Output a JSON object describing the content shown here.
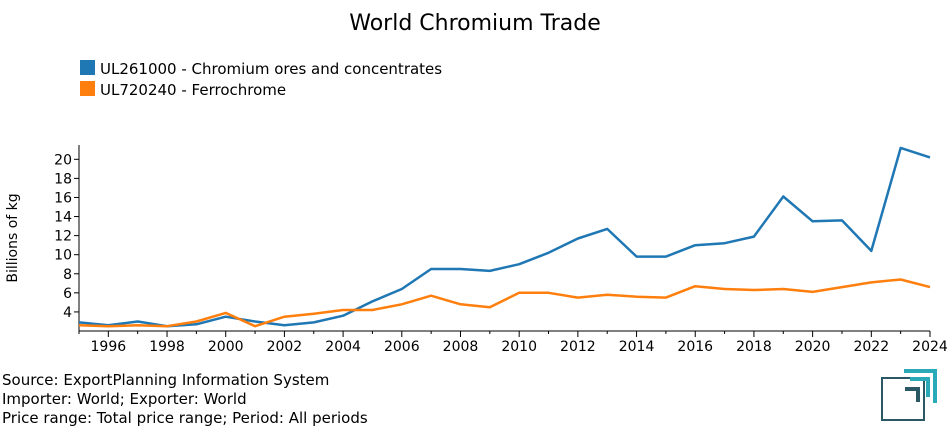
{
  "chart_data": {
    "type": "line",
    "title": "World Chromium Trade",
    "ylabel": "Billions of kg",
    "xlabel": "",
    "xlim": [
      1995,
      2024
    ],
    "ylim": [
      2.0,
      21.5
    ],
    "yticks": [
      4,
      6,
      8,
      10,
      12,
      14,
      16,
      18,
      20
    ],
    "xticks": [
      1996,
      1998,
      2000,
      2002,
      2004,
      2006,
      2008,
      2010,
      2012,
      2014,
      2016,
      2018,
      2020,
      2022,
      2024
    ],
    "legend_position": "top-left",
    "x": [
      1995,
      1996,
      1997,
      1998,
      1999,
      2000,
      2001,
      2002,
      2003,
      2004,
      2005,
      2006,
      2007,
      2008,
      2009,
      2010,
      2011,
      2012,
      2013,
      2014,
      2015,
      2016,
      2017,
      2018,
      2019,
      2020,
      2021,
      2022,
      2023,
      2024
    ],
    "series": [
      {
        "name": "UL261000 - Chromium ores and concentrates",
        "color": "#1f77b4",
        "values": [
          2.9,
          2.6,
          3.0,
          2.5,
          2.7,
          3.5,
          3.0,
          2.6,
          2.9,
          3.6,
          5.1,
          6.4,
          8.5,
          8.5,
          8.3,
          9.0,
          10.2,
          11.7,
          12.7,
          9.8,
          9.8,
          11.0,
          11.2,
          11.9,
          16.1,
          13.5,
          13.6,
          10.4,
          21.2,
          20.2
        ]
      },
      {
        "name": "UL720240 - Ferrochrome",
        "color": "#ff7f0e",
        "values": [
          2.6,
          2.5,
          2.6,
          2.5,
          3.0,
          3.9,
          2.5,
          3.5,
          3.8,
          4.2,
          4.2,
          4.8,
          5.7,
          4.8,
          4.5,
          6.0,
          6.0,
          5.5,
          5.8,
          5.6,
          5.5,
          6.7,
          6.4,
          6.3,
          6.4,
          6.1,
          6.6,
          7.1,
          7.4,
          6.6
        ]
      }
    ]
  },
  "footer": {
    "source": "Source: ExportPlanning Information System",
    "scope": "Importer: World; Exporter: World",
    "range": "Price range: Total price range; Period: All periods"
  },
  "logo": {
    "dark_color": "#2a5965",
    "accent_color": "#2aaab8"
  }
}
